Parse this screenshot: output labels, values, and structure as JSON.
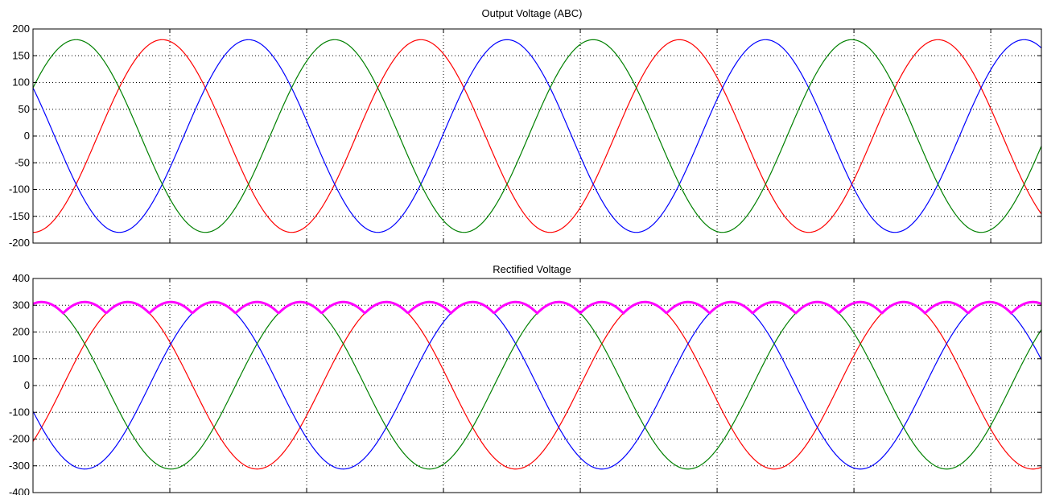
{
  "chart_data": [
    {
      "type": "line",
      "title": "Output Voltage (ABC)",
      "xlabel": "",
      "ylabel": "",
      "ylim": [
        -200,
        200
      ],
      "yticks": [
        -200,
        -150,
        -100,
        -50,
        0,
        50,
        100,
        150,
        200
      ],
      "xtick_count": 7,
      "grid": true,
      "legend": "none",
      "amplitude": 180,
      "cycles": 3.9,
      "series": [
        {
          "color": "#ff0000",
          "phase_deg": -90
        },
        {
          "color": "#0000ff",
          "phase_deg": 150
        },
        {
          "color": "#008000",
          "phase_deg": 30
        }
      ]
    },
    {
      "type": "line",
      "title": "Rectified Voltage",
      "xlabel": "",
      "ylabel": "",
      "ylim": [
        -400,
        400
      ],
      "yticks": [
        -400,
        -300,
        -200,
        -100,
        0,
        100,
        200,
        300,
        400
      ],
      "xtick_count": 7,
      "grid": true,
      "legend": "none",
      "amplitude": 312,
      "cycles": 3.9,
      "series": [
        {
          "color": "#ff0000",
          "phase_deg": -42
        },
        {
          "color": "#0000ff",
          "phase_deg": 198
        },
        {
          "color": "#008000",
          "phase_deg": 78
        },
        {
          "color": "#ff00ff",
          "kind": "envelope",
          "phase_deg": 78
        }
      ]
    }
  ]
}
